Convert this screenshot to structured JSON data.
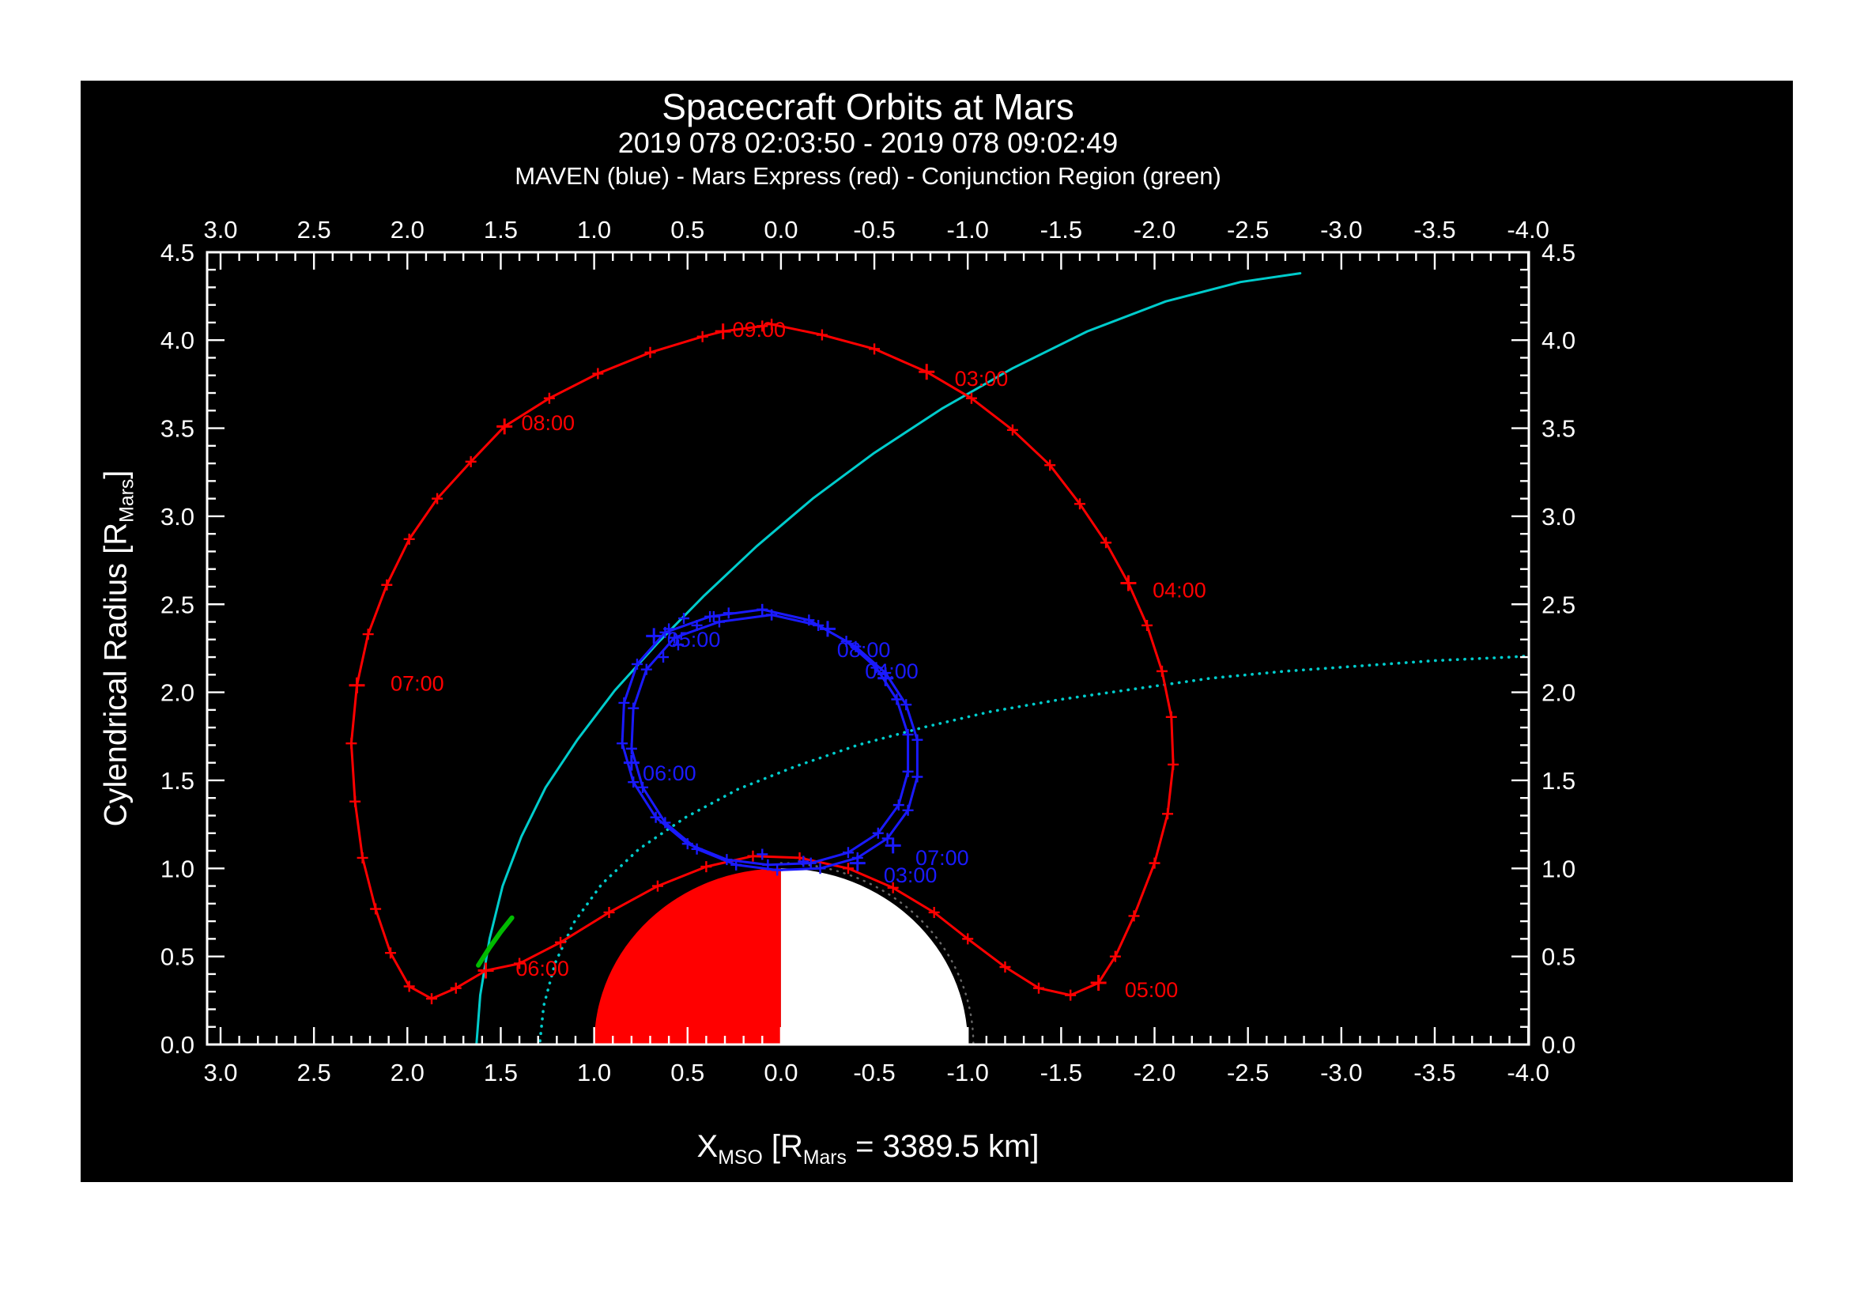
{
  "header": {
    "title": "Spacecraft Orbits at Mars",
    "subtitle": "2019 078 02:03:50 - 2019 078 09:02:49",
    "legend": "MAVEN (blue) - Mars Express (red) - Conjunction Region (green)"
  },
  "colors": {
    "mex": "#ff0000",
    "maven": "#1a1aff",
    "boundary": "#00cccc",
    "conjunction": "#00bb00",
    "frame": "#ffffff",
    "mars_day": "#ff0000",
    "mars_night": "#ffffff"
  },
  "axes": {
    "x": {
      "label_parts": {
        "p1": "X",
        "s1": "MSO",
        "p2": " [R",
        "s2": "Mars",
        "p3": " = 3389.5 km]"
      },
      "ticks": [
        "3.0",
        "2.5",
        "2.0",
        "1.5",
        "1.0",
        "0.5",
        "0.0",
        "-0.5",
        "-1.0",
        "-1.5",
        "-2.0",
        "-2.5",
        "-3.0",
        "-3.5",
        "-4.0"
      ],
      "minor_step": 0.1,
      "range": [
        3.0,
        -4.0
      ]
    },
    "y": {
      "label_parts": {
        "p1": "Cylendrical Radius [R",
        "s1": "Mars",
        "p2": "]"
      },
      "ticks": [
        "0.0",
        "0.5",
        "1.0",
        "1.5",
        "2.0",
        "2.5",
        "3.0",
        "3.5",
        "4.0",
        "4.5"
      ],
      "minor_step": 0.1,
      "range": [
        0.0,
        4.5
      ]
    }
  },
  "chart_data": {
    "type": "line",
    "title": "Spacecraft Orbits at Mars",
    "subtitle": "2019 078 02:03:50 - 2019 078 09:02:49",
    "xlabel": "X_MSO [R_Mars = 3389.5 km]",
    "ylabel": "Cylendrical Radius [R_Mars]",
    "xlim": [
      3.0,
      -4.0
    ],
    "ylim": [
      0.0,
      4.5
    ],
    "mars": {
      "cx": 0,
      "cy": 0,
      "r": 1,
      "day_color_key": "mars_day",
      "night_color_key": "mars_night"
    },
    "series": [
      {
        "id": "boundary-dotted",
        "name": "dotted cyan boundary",
        "color_key": "boundary",
        "style": "dotted",
        "markers": false,
        "segments": [
          [
            [
              1.29,
              0.02
            ],
            [
              1.27,
              0.22
            ],
            [
              1.21,
              0.46
            ],
            [
              1.11,
              0.69
            ],
            [
              0.96,
              0.91
            ],
            [
              0.76,
              1.11
            ],
            [
              0.51,
              1.29
            ],
            [
              0.23,
              1.45
            ],
            [
              -0.08,
              1.58
            ],
            [
              -0.41,
              1.7
            ],
            [
              -0.76,
              1.8
            ],
            [
              -1.12,
              1.89
            ],
            [
              -1.5,
              1.96
            ],
            [
              -1.9,
              2.02
            ],
            [
              -2.3,
              2.08
            ],
            [
              -2.7,
              2.12
            ],
            [
              -3.1,
              2.15
            ],
            [
              -3.5,
              2.18
            ],
            [
              -3.9,
              2.2
            ],
            [
              -4.05,
              2.21
            ]
          ]
        ]
      },
      {
        "id": "boundary-solid",
        "name": "solid cyan boundary",
        "color_key": "boundary",
        "style": "solid",
        "markers": false,
        "segments": [
          [
            [
              1.63,
              0.0
            ],
            [
              1.61,
              0.28
            ],
            [
              1.56,
              0.6
            ],
            [
              1.49,
              0.9
            ],
            [
              1.39,
              1.18
            ],
            [
              1.26,
              1.46
            ],
            [
              1.09,
              1.73
            ],
            [
              0.89,
              2.01
            ],
            [
              0.66,
              2.28
            ],
            [
              0.41,
              2.55
            ],
            [
              0.13,
              2.83
            ],
            [
              -0.17,
              3.1
            ],
            [
              -0.5,
              3.36
            ],
            [
              -0.86,
              3.61
            ],
            [
              -1.24,
              3.84
            ],
            [
              -1.64,
              4.05
            ],
            [
              -2.06,
              4.22
            ],
            [
              -2.46,
              4.33
            ],
            [
              -2.78,
              4.38
            ]
          ]
        ]
      },
      {
        "id": "conjunction",
        "name": "Conjunction Region",
        "color_key": "conjunction",
        "style": "solid",
        "width": 6,
        "markers": false,
        "segments": [
          [
            [
              1.62,
              0.45
            ],
            [
              1.56,
              0.55
            ],
            [
              1.5,
              0.64
            ],
            [
              1.44,
              0.72
            ]
          ]
        ]
      },
      {
        "id": "mars-express",
        "name": "Mars Express",
        "color_key": "mex",
        "style": "solid",
        "markers": true,
        "segments": [
          [
            [
              0.05,
              4.09
            ],
            [
              -0.22,
              4.03
            ],
            [
              -0.5,
              3.95
            ],
            [
              -0.78,
              3.82
            ],
            [
              -1.02,
              3.67
            ],
            [
              -1.24,
              3.49
            ],
            [
              -1.44,
              3.29
            ],
            [
              -1.6,
              3.07
            ],
            [
              -1.74,
              2.85
            ],
            [
              -1.86,
              2.62
            ],
            [
              -1.96,
              2.38
            ],
            [
              -2.04,
              2.12
            ],
            [
              -2.09,
              1.86
            ],
            [
              -2.1,
              1.59
            ],
            [
              -2.07,
              1.31
            ],
            [
              -2.0,
              1.03
            ],
            [
              -1.89,
              0.73
            ],
            [
              -1.79,
              0.5
            ],
            [
              -1.7,
              0.35
            ],
            [
              -1.55,
              0.28
            ],
            [
              -1.38,
              0.32
            ],
            [
              -1.2,
              0.44
            ],
            [
              -1.0,
              0.6
            ],
            [
              -0.82,
              0.75
            ],
            [
              -0.6,
              0.89
            ],
            [
              -0.36,
              1.0
            ],
            [
              -0.1,
              1.06
            ],
            [
              0.15,
              1.07
            ],
            [
              0.4,
              1.01
            ],
            [
              0.66,
              0.9
            ],
            [
              0.92,
              0.75
            ],
            [
              1.18,
              0.58
            ],
            [
              1.4,
              0.46
            ],
            [
              1.58,
              0.42
            ],
            [
              1.74,
              0.32
            ],
            [
              1.87,
              0.26
            ],
            [
              1.99,
              0.33
            ],
            [
              2.09,
              0.52
            ],
            [
              2.17,
              0.77
            ],
            [
              2.24,
              1.06
            ],
            [
              2.28,
              1.38
            ],
            [
              2.3,
              1.71
            ],
            [
              2.27,
              2.04
            ],
            [
              2.21,
              2.33
            ],
            [
              2.11,
              2.61
            ],
            [
              1.99,
              2.87
            ],
            [
              1.84,
              3.1
            ],
            [
              1.66,
              3.31
            ],
            [
              1.48,
              3.51
            ],
            [
              1.24,
              3.67
            ],
            [
              0.98,
              3.81
            ],
            [
              0.7,
              3.93
            ],
            [
              0.42,
              4.02
            ],
            [
              0.31,
              4.05
            ],
            [
              0.1,
              4.08
            ]
          ]
        ],
        "hour_ticks": [
          {
            "label": "03:00",
            "x": -0.78,
            "y": 3.82,
            "lx": -0.93,
            "ly": 3.78
          },
          {
            "label": "04:00",
            "x": -1.86,
            "y": 2.62,
            "lx": -1.99,
            "ly": 2.58
          },
          {
            "label": "05:00",
            "x": -1.7,
            "y": 0.35,
            "lx": -1.84,
            "ly": 0.31
          },
          {
            "label": "06:00",
            "x": 1.58,
            "y": 0.42,
            "lx": 1.42,
            "ly": 0.43
          },
          {
            "label": "07:00",
            "x": 2.27,
            "y": 2.04,
            "lx": 2.09,
            "ly": 2.05
          },
          {
            "label": "08:00",
            "x": 1.48,
            "y": 3.51,
            "lx": 1.39,
            "ly": 3.53
          },
          {
            "label": "09:00",
            "x": 0.31,
            "y": 4.05,
            "lx": 0.26,
            "ly": 4.06
          }
        ]
      },
      {
        "id": "maven",
        "name": "MAVEN",
        "color_key": "maven",
        "style": "solid",
        "markers": true,
        "segments": [
          [
            [
              0.05,
              2.44
            ],
            [
              0.33,
              2.4
            ],
            [
              0.57,
              2.31
            ],
            [
              0.72,
              2.13
            ],
            [
              0.79,
              1.91
            ],
            [
              0.8,
              1.68
            ],
            [
              0.74,
              1.46
            ],
            [
              0.62,
              1.26
            ],
            [
              0.45,
              1.11
            ],
            [
              0.24,
              1.02
            ],
            [
              0.02,
              0.99
            ],
            [
              -0.21,
              1.0
            ],
            [
              -0.41,
              1.06
            ],
            [
              -0.57,
              1.17
            ],
            [
              -0.68,
              1.33
            ],
            [
              -0.73,
              1.52
            ],
            [
              -0.73,
              1.73
            ],
            [
              -0.67,
              1.93
            ],
            [
              -0.56,
              2.11
            ],
            [
              -0.4,
              2.26
            ],
            [
              -0.2,
              2.38
            ],
            [
              0.05,
              2.44
            ]
          ],
          [
            [
              0.1,
              2.47
            ],
            [
              0.38,
              2.43
            ],
            [
              0.62,
              2.34
            ],
            [
              0.77,
              2.16
            ],
            [
              0.84,
              1.94
            ],
            [
              0.85,
              1.71
            ],
            [
              0.79,
              1.49
            ],
            [
              0.67,
              1.29
            ],
            [
              0.5,
              1.14
            ],
            [
              0.29,
              1.05
            ],
            [
              0.07,
              1.02
            ],
            [
              -0.16,
              1.03
            ],
            [
              -0.36,
              1.09
            ],
            [
              -0.52,
              1.2
            ],
            [
              -0.63,
              1.36
            ],
            [
              -0.68,
              1.55
            ],
            [
              -0.68,
              1.76
            ],
            [
              -0.62,
              1.96
            ],
            [
              -0.51,
              2.14
            ],
            [
              -0.35,
              2.29
            ],
            [
              -0.15,
              2.41
            ],
            [
              0.1,
              2.47
            ]
          ]
        ],
        "extra_markers": [
          [
            0.45,
            2.38
          ],
          [
            0.52,
            2.42
          ],
          [
            0.6,
            2.36
          ],
          [
            0.36,
            2.43
          ],
          [
            0.28,
            2.45
          ],
          [
            0.55,
            2.27
          ],
          [
            0.63,
            2.2
          ],
          [
            0.1,
            1.08
          ],
          [
            -0.12,
            1.04
          ]
        ],
        "hour_ticks": [
          {
            "label": "03:00",
            "x": -0.41,
            "y": 1.03,
            "lx": -0.55,
            "ly": 0.96
          },
          {
            "label": "04:00",
            "x": -0.56,
            "y": 2.08,
            "lx": -0.45,
            "ly": 2.12
          },
          {
            "label": "05:00",
            "x": 0.68,
            "y": 2.32,
            "lx": 0.61,
            "ly": 2.3
          },
          {
            "label": "06:00",
            "x": 0.8,
            "y": 1.6,
            "lx": 0.74,
            "ly": 1.54
          },
          {
            "label": "07:00",
            "x": -0.6,
            "y": 1.13,
            "lx": -0.72,
            "ly": 1.06
          },
          {
            "label": "08:00",
            "x": -0.25,
            "y": 2.36,
            "lx": -0.3,
            "ly": 2.24
          }
        ]
      }
    ]
  }
}
